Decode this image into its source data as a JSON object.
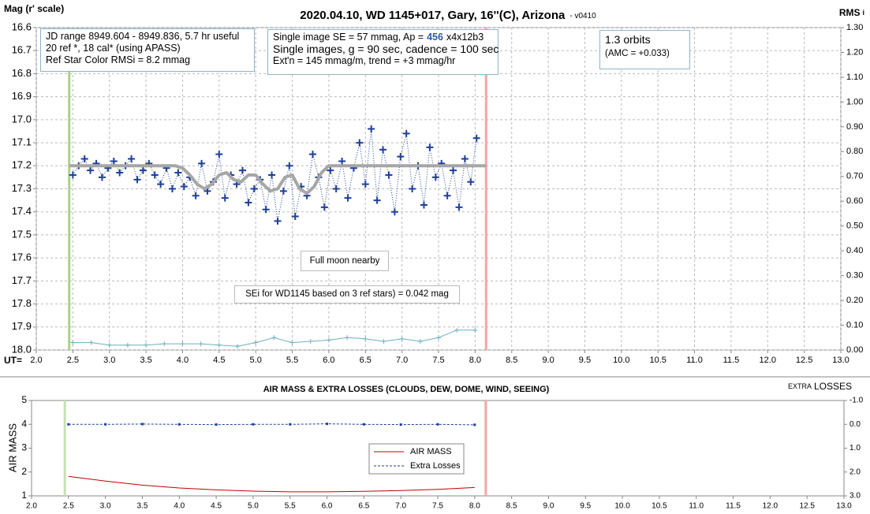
{
  "chart_data": [
    {
      "type": "scatter",
      "title": "2020.04.10, WD 1145+017, Gary, 16''(C), Arizona",
      "version": "- v0410",
      "ylabel": "Mag (r' scale)",
      "y2label": "RMS",
      "y2label_sub": "i",
      "xlabel": "UT=",
      "xlim": [
        2.0,
        13.0
      ],
      "xticks": [
        {
          "value": 2,
          "label": "2.0"
        },
        2.5,
        {
          "value": 3,
          "label": "3.0"
        },
        3.5,
        {
          "value": 4,
          "label": "4.0"
        },
        4.5,
        {
          "value": 5,
          "label": "5.0"
        },
        5.5,
        {
          "value": 6,
          "label": "6.0"
        },
        6.5,
        {
          "value": 7,
          "label": "7.0"
        },
        7.5,
        {
          "value": 8,
          "label": "8.0"
        },
        8.5,
        {
          "value": 9,
          "label": "9.0"
        },
        9.5,
        {
          "value": 10,
          "label": "10.0"
        },
        10.5,
        {
          "value": 11,
          "label": "11.0"
        },
        11.5,
        {
          "value": 12,
          "label": "12.0"
        },
        12.5,
        {
          "value": 13,
          "label": "13.0"
        }
      ],
      "ylim": [
        18.0,
        16.6
      ],
      "yticks": [
        16.6,
        16.7,
        16.8,
        16.9,
        {
          "value": 17,
          "label": "17.0"
        },
        17.1,
        17.2,
        17.3,
        17.4,
        17.5,
        17.6,
        17.7,
        17.8,
        17.9,
        {
          "value": 18,
          "label": "18.0"
        }
      ],
      "y2lim": [
        0,
        1.3
      ],
      "y2ticks": [
        {
          "value": 0,
          "label": "0.00"
        },
        {
          "value": 0.1,
          "label": "0.10"
        },
        {
          "value": 0.2,
          "label": "0.20"
        },
        {
          "value": 0.3,
          "label": "0.30"
        },
        {
          "value": 0.4,
          "label": "0.40"
        },
        {
          "value": 0.5,
          "label": "0.50"
        },
        {
          "value": 0.6,
          "label": "0.60"
        },
        {
          "value": 0.7,
          "label": "0.70"
        },
        {
          "value": 0.8,
          "label": "0.80"
        },
        {
          "value": 0.9,
          "label": "0.90"
        },
        {
          "value": 1,
          "label": "1.00"
        },
        {
          "value": 1.1,
          "label": "1.10"
        },
        {
          "value": 1.2,
          "label": "1.20"
        },
        {
          "value": 1.3,
          "label": "1.30"
        }
      ],
      "grid": true,
      "vlines": [
        {
          "value": 2.45,
          "color": "#a9d18e"
        },
        {
          "value": 8.15,
          "color": "#f4a6a6"
        }
      ],
      "series": [
        {
          "color": "#1f3f99",
          "marker": "plus",
          "line": "dotted",
          "x": [
            2.5,
            2.58,
            2.66,
            2.74,
            2.82,
            2.9,
            2.98,
            3.06,
            3.14,
            3.22,
            3.3,
            3.38,
            3.46,
            3.54,
            3.62,
            3.7,
            3.78,
            3.86,
            3.94,
            4.02,
            4.1,
            4.18,
            4.26,
            4.34,
            4.42,
            4.5,
            4.58,
            4.66,
            4.74,
            4.82,
            4.9,
            4.98,
            5.06,
            5.14,
            5.22,
            5.3,
            5.38,
            5.46,
            5.54,
            5.62,
            5.7,
            5.78,
            5.86,
            5.94,
            6.02,
            6.1,
            6.18,
            6.26,
            6.34,
            6.42,
            6.5,
            6.58,
            6.66,
            6.74,
            6.82,
            6.9,
            6.98,
            7.06,
            7.14,
            7.22,
            7.3,
            7.38,
            7.46,
            7.54,
            7.62,
            7.7,
            7.78,
            7.86,
            7.94,
            8.02
          ],
          "values": [
            17.24,
            17.2,
            17.17,
            17.22,
            17.19,
            17.25,
            17.21,
            17.18,
            17.23,
            17.2,
            17.17,
            17.26,
            17.22,
            17.19,
            17.24,
            17.28,
            17.21,
            17.3,
            17.23,
            17.29,
            17.25,
            17.33,
            17.19,
            17.31,
            17.27,
            17.15,
            17.34,
            17.24,
            17.28,
            17.22,
            17.36,
            17.3,
            17.26,
            17.39,
            17.24,
            17.44,
            17.31,
            17.2,
            17.42,
            17.29,
            17.33,
            17.15,
            17.25,
            17.38,
            17.22,
            17.3,
            17.18,
            17.34,
            17.21,
            17.1,
            17.28,
            17.04,
            17.35,
            17.13,
            17.24,
            17.4,
            17.16,
            17.06,
            17.3,
            17.2,
            17.37,
            17.12,
            17.25,
            17.19,
            17.33,
            17.22,
            17.38,
            17.17,
            17.27,
            17.08
          ]
        },
        {
          "color": "#a6a6a6",
          "line": "thick",
          "x": [
            2.45,
            3.9,
            4.0,
            4.1,
            4.2,
            4.3,
            4.4,
            4.5,
            4.6,
            4.7,
            4.8,
            4.9,
            5.0,
            5.1,
            5.2,
            5.3,
            5.4,
            5.5,
            5.6,
            5.7,
            5.8,
            5.9,
            6.0,
            8.15
          ],
          "values": [
            17.2,
            17.2,
            17.21,
            17.24,
            17.28,
            17.3,
            17.28,
            17.24,
            17.23,
            17.26,
            17.27,
            17.24,
            17.24,
            17.28,
            17.31,
            17.3,
            17.25,
            17.24,
            17.3,
            17.32,
            17.29,
            17.23,
            17.2,
            17.2
          ]
        },
        {
          "color": "#6fb0bb",
          "marker": "plus",
          "line": "solid",
          "axis": "y2",
          "x": [
            2.5,
            2.75,
            3.0,
            3.25,
            3.5,
            3.75,
            4.0,
            4.25,
            4.5,
            4.75,
            5.0,
            5.25,
            5.5,
            5.75,
            6.0,
            6.25,
            6.5,
            6.75,
            7.0,
            7.25,
            7.5,
            7.75,
            8.0
          ],
          "values": [
            0.03,
            0.03,
            0.02,
            0.02,
            0.02,
            0.025,
            0.025,
            0.025,
            0.02,
            0.015,
            0.03,
            0.05,
            0.03,
            0.035,
            0.04,
            0.05,
            0.045,
            0.035,
            0.045,
            0.035,
            0.05,
            0.08,
            0.08
          ]
        }
      ],
      "annotations": [
        {
          "lines": [
            "JD range 8949.604 - 8949.836, 5.7 hr useful",
            "20 ref *, 18 cal* (using APASS)",
            "Ref Star Color RMSi = 8.2 mmag"
          ]
        },
        {
          "lines": [
            [
              "Single image SE = 57 mmag, Ap =",
              "456",
              "x4x12b3"
            ],
            "Single images, g = 90 sec, cadence = 100 sec",
            "Ext'n = 145 mmag/m, trend = +3 mmag/hr"
          ]
        },
        {
          "lines": [
            "1.3 orbits",
            "(AMC = +0.033)"
          ]
        },
        {
          "lines": [
            "Full moon nearby"
          ]
        },
        {
          "lines": [
            "SEi for WD1145 based on 3 ref stars) = 0.042 mag"
          ]
        }
      ]
    },
    {
      "type": "line",
      "title": "AIR MASS & EXTRA LOSSES (CLOUDS, DEW, DOME, WIND, SEEING)",
      "ylabel": "AIR MASS",
      "y2label": [
        "EXTRA",
        "LOSSES"
      ],
      "xlim": [
        2.0,
        13.0
      ],
      "xticks": [
        {
          "value": 2,
          "label": "2.0"
        },
        2.5,
        {
          "value": 3,
          "label": "3.0"
        },
        3.5,
        {
          "value": 4,
          "label": "4.0"
        },
        4.5,
        {
          "value": 5,
          "label": "5.0"
        },
        5.5,
        {
          "value": 6,
          "label": "6.0"
        },
        6.5,
        {
          "value": 7,
          "label": "7.0"
        },
        7.5,
        {
          "value": 8,
          "label": "8.0"
        },
        8.5,
        {
          "value": 9,
          "label": "9.0"
        },
        9.5,
        {
          "value": 10,
          "label": "10.0"
        },
        10.5,
        {
          "value": 11,
          "label": "11.0"
        },
        11.5,
        {
          "value": 12,
          "label": "12.0"
        },
        12.5,
        {
          "value": 13,
          "label": "13.0"
        }
      ],
      "ylim": [
        1,
        5
      ],
      "yticks": [
        1,
        2,
        3,
        4,
        5
      ],
      "y2lim": [
        3.0,
        -1.0
      ],
      "y2ticks": [
        {
          "value": -1,
          "label": "-1.0"
        },
        {
          "value": 0,
          "label": "0.0"
        },
        {
          "value": 1,
          "label": "1.0"
        },
        {
          "value": 2,
          "label": "2.0"
        },
        {
          "value": 3,
          "label": "3.0"
        }
      ],
      "grid": false,
      "legend": "center",
      "vlines": [
        {
          "value": 2.45,
          "color": "#c5e0b4"
        },
        {
          "value": 8.15,
          "color": "#f4a6a6"
        }
      ],
      "series": [
        {
          "name": "AIR MASS",
          "color": "#c00000",
          "line": "solid",
          "x": [
            2.5,
            3.0,
            3.5,
            4.0,
            4.5,
            5.0,
            5.5,
            6.0,
            6.5,
            7.0,
            7.5,
            8.0
          ],
          "values": [
            1.82,
            1.62,
            1.45,
            1.33,
            1.25,
            1.2,
            1.17,
            1.17,
            1.19,
            1.22,
            1.27,
            1.35
          ]
        },
        {
          "name": "Extra Losses",
          "color": "#1f3f99",
          "line": "dashed",
          "marker": "dot",
          "axis": "y2",
          "x": [
            2.5,
            3.0,
            3.5,
            4.0,
            4.5,
            5.0,
            5.5,
            6.0,
            6.5,
            7.0,
            7.5,
            8.0
          ],
          "values": [
            0.0,
            0.0,
            -0.01,
            0.0,
            0.01,
            0.0,
            0.0,
            -0.02,
            0.0,
            0.01,
            0.0,
            0.02
          ]
        }
      ]
    }
  ]
}
